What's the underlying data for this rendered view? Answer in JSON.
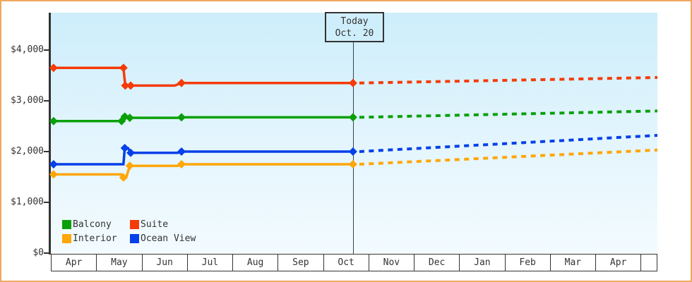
{
  "colors": {
    "frame_border": "#efa95f",
    "axis": "#333333",
    "plot_bg_top": "#cdeefb",
    "plot_bg_bottom": "#f3fbff",
    "today_box_fill": "#cfeefb",
    "suite": "#f53b08",
    "balcony": "#0aa00a",
    "interior": "#ffa608",
    "ocean_view": "#0540e8"
  },
  "chart": {
    "today_box": {
      "line1": "Today",
      "line2": "Oct. 20"
    }
  },
  "chart_data": {
    "type": "line",
    "title": "",
    "y_axis": {
      "unit": "USD",
      "range": [
        0,
        4735
      ],
      "ticks": [
        {
          "value": 0,
          "label": "$0"
        },
        {
          "value": 1000,
          "label": "$1,000"
        },
        {
          "value": 2000,
          "label": "$2,000"
        },
        {
          "value": 3000,
          "label": "$3,000"
        },
        {
          "value": 4000,
          "label": "$4,000"
        }
      ]
    },
    "x_axis": {
      "months": [
        "Apr",
        "May",
        "Jun",
        "Jul",
        "Aug",
        "Sep",
        "Oct",
        "Nov",
        "Dec",
        "Jan",
        "Feb",
        "Mar",
        "Apr"
      ],
      "note": "month_offset 0 = start of first Apr; 13.37 = right edge of plot"
    },
    "today": {
      "month_offset": 6.66,
      "label_line1": "Today",
      "label_line2": "Oct. 20"
    },
    "grid": false,
    "legend_position": "bottom-left-inside",
    "series": [
      {
        "name": "Interior",
        "color": "#ffa608",
        "solid": [
          [
            0,
            1550
          ],
          [
            1.56,
            1550
          ],
          [
            1.6,
            1490
          ],
          [
            1.66,
            1490
          ],
          [
            1.74,
            1720
          ],
          [
            2.8,
            1720
          ],
          [
            2.88,
            1750
          ],
          [
            6.66,
            1750
          ]
        ],
        "projected": [
          [
            6.66,
            1750
          ],
          [
            13.37,
            2030
          ]
        ],
        "markers": [
          [
            0.06,
            1550
          ],
          [
            1.6,
            1490
          ],
          [
            1.74,
            1720
          ],
          [
            2.88,
            1750
          ],
          [
            6.66,
            1750
          ]
        ]
      },
      {
        "name": "Ocean View",
        "color": "#0540e8",
        "solid": [
          [
            0,
            1750
          ],
          [
            1.6,
            1750
          ],
          [
            1.63,
            2070
          ],
          [
            1.7,
            2070
          ],
          [
            1.76,
            1975
          ],
          [
            2.8,
            1975
          ],
          [
            2.88,
            2000
          ],
          [
            6.66,
            2000
          ]
        ],
        "projected": [
          [
            6.66,
            2000
          ],
          [
            13.37,
            2320
          ]
        ],
        "markers": [
          [
            0.06,
            1750
          ],
          [
            1.63,
            2070
          ],
          [
            1.76,
            1975
          ],
          [
            2.88,
            2000
          ],
          [
            6.66,
            2000
          ]
        ]
      },
      {
        "name": "Balcony",
        "color": "#0aa00a",
        "solid": [
          [
            0,
            2600
          ],
          [
            1.56,
            2600
          ],
          [
            1.63,
            2690
          ],
          [
            1.74,
            2665
          ],
          [
            2.8,
            2665
          ],
          [
            2.88,
            2675
          ],
          [
            6.66,
            2675
          ]
        ],
        "projected": [
          [
            6.66,
            2675
          ],
          [
            13.37,
            2800
          ]
        ],
        "markers": [
          [
            0.06,
            2600
          ],
          [
            1.56,
            2600
          ],
          [
            1.63,
            2690
          ],
          [
            1.74,
            2665
          ],
          [
            2.88,
            2675
          ],
          [
            6.66,
            2675
          ]
        ]
      },
      {
        "name": "Suite",
        "color": "#f53b08",
        "solid": [
          [
            0,
            3650
          ],
          [
            1.6,
            3650
          ],
          [
            1.64,
            3300
          ],
          [
            1.76,
            3300
          ],
          [
            2.73,
            3300
          ],
          [
            2.88,
            3350
          ],
          [
            6.66,
            3350
          ]
        ],
        "projected": [
          [
            6.66,
            3350
          ],
          [
            13.37,
            3460
          ]
        ],
        "markers": [
          [
            0.06,
            3650
          ],
          [
            1.6,
            3650
          ],
          [
            1.64,
            3300
          ],
          [
            1.76,
            3300
          ],
          [
            2.88,
            3350
          ],
          [
            6.66,
            3350
          ]
        ]
      }
    ]
  },
  "legend": {
    "items": [
      {
        "label": "Balcony",
        "color": "#0aa00a"
      },
      {
        "label": "Suite",
        "color": "#f53b08"
      },
      {
        "label": "Interior",
        "color": "#ffa608"
      },
      {
        "label": "Ocean View",
        "color": "#0540e8"
      }
    ]
  }
}
